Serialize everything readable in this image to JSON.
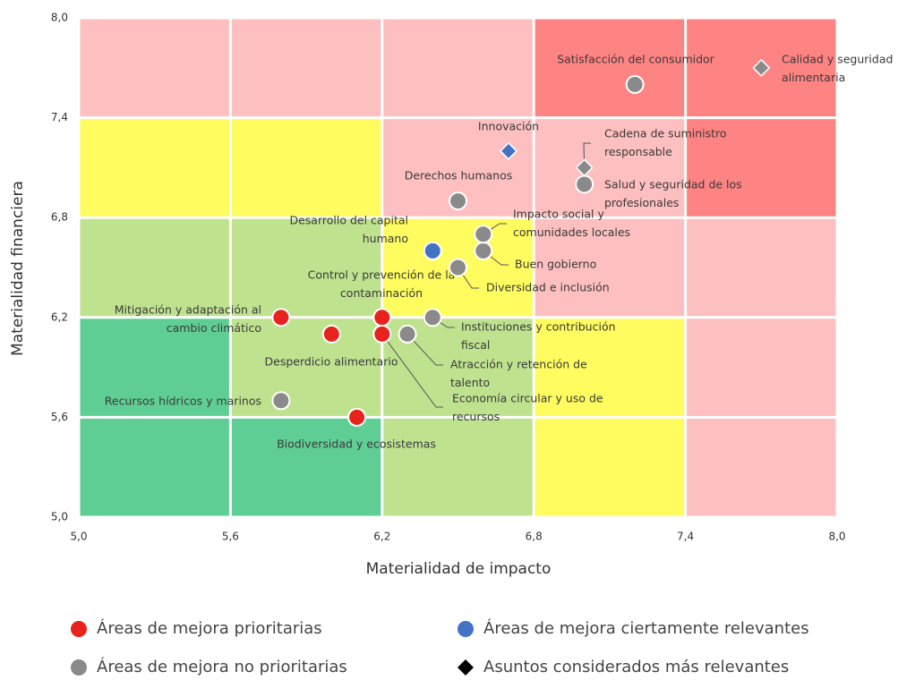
{
  "chart_data": {
    "type": "scatter",
    "x_label": "Materialidad de impacto",
    "y_label": "Materialidad  financiera",
    "xlim": [
      5,
      8
    ],
    "ylim": [
      5,
      8
    ],
    "xticks": [
      {
        "value": 5,
        "label": "5,0"
      },
      {
        "value": 5.6,
        "label": "5,6"
      },
      {
        "value": 6.2,
        "label": "6,2"
      },
      {
        "value": 6.8,
        "label": "6,8"
      },
      {
        "value": 7.4,
        "label": "7,4"
      },
      {
        "value": 8,
        "label": "8,0"
      }
    ],
    "yticks": [
      {
        "value": 5,
        "label": "5,0"
      },
      {
        "value": 5.6,
        "label": "5,6"
      },
      {
        "value": 6.2,
        "label": "6,2"
      },
      {
        "value": 6.8,
        "label": "6,8"
      },
      {
        "value": 7.4,
        "label": "7,4"
      },
      {
        "value": 8,
        "label": "8,0"
      }
    ],
    "zone_colors": [
      [
        "#fdbfbf",
        "#fdbfbf",
        "#fdbfbf",
        "#fe8383",
        "#fe8383"
      ],
      [
        "#fefc5e",
        "#fefc5e",
        "#fdbfbf",
        "#fdbfbf",
        "#fe8383"
      ],
      [
        "#bfe28f",
        "#bfe28f",
        "#fefc5e",
        "#fdbfbf",
        "#fdbfbf"
      ],
      [
        "#5fce94",
        "#bfe28f",
        "#bfe28f",
        "#fefc5e",
        "#fdbfbf"
      ],
      [
        "#5fce94",
        "#5fce94",
        "#bfe28f",
        "#fefc5e",
        "#fdbfbf"
      ]
    ],
    "legend": [
      {
        "name": "Áreas de mejora prioritarias",
        "color": "#e8221c",
        "marker": "circle"
      },
      {
        "name": "Áreas de mejora ciertamente relevantes",
        "color": "#4472c4",
        "marker": "circle"
      },
      {
        "name": "Áreas de mejora no prioritarias",
        "color": "#8a8a8a",
        "marker": "circle"
      },
      {
        "name": "Asuntos considerados más relevantes",
        "color": "#000000",
        "marker": "diamond"
      }
    ],
    "points": [
      {
        "x": 5.8,
        "y": 6.2,
        "color": "#e8221c",
        "marker": "circle",
        "label": [
          "Mitigación y adaptación al",
          "cambio climático"
        ]
      },
      {
        "x": 6.0,
        "y": 6.1,
        "color": "#e8221c",
        "marker": "circle",
        "label": [
          "Desperdicio alimentario"
        ]
      },
      {
        "x": 6.2,
        "y": 6.2,
        "color": "#e8221c",
        "marker": "circle",
        "label": [
          "Control y prevención de la",
          "contaminación"
        ]
      },
      {
        "x": 6.2,
        "y": 6.1,
        "color": "#e8221c",
        "marker": "circle",
        "label": [
          "Economía circular y uso de",
          "recursos"
        ]
      },
      {
        "x": 6.1,
        "y": 5.6,
        "color": "#e8221c",
        "marker": "circle",
        "label": [
          "Biodiversidad y ecosistemas"
        ]
      },
      {
        "x": 5.8,
        "y": 5.7,
        "color": "#8a8a8a",
        "marker": "circle",
        "label": [
          "Recursos hídricos y marinos"
        ]
      },
      {
        "x": 6.4,
        "y": 6.2,
        "color": "#8a8a8a",
        "marker": "circle",
        "label": [
          "Instituciones y contribución",
          "fiscal"
        ]
      },
      {
        "x": 6.3,
        "y": 6.1,
        "color": "#8a8a8a",
        "marker": "circle",
        "label": [
          "Atracción y retención de",
          "talento"
        ]
      },
      {
        "x": 6.5,
        "y": 6.5,
        "color": "#8a8a8a",
        "marker": "circle",
        "label": [
          "Diversidad e inclusión"
        ]
      },
      {
        "x": 6.6,
        "y": 6.6,
        "color": "#8a8a8a",
        "marker": "circle",
        "label": [
          "Buen gobierno"
        ]
      },
      {
        "x": 6.6,
        "y": 6.7,
        "color": "#8a8a8a",
        "marker": "circle",
        "label": [
          "Impacto social y",
          "comunidades locales"
        ]
      },
      {
        "x": 6.5,
        "y": 6.9,
        "color": "#8a8a8a",
        "marker": "circle",
        "label": [
          "Derechos humanos"
        ]
      },
      {
        "x": 7.0,
        "y": 7.0,
        "color": "#8a8a8a",
        "marker": "circle",
        "label": [
          "Salud y seguridad de los",
          "profesionales"
        ]
      },
      {
        "x": 7.2,
        "y": 7.6,
        "color": "#8a8a8a",
        "marker": "circle",
        "label": [
          "Satisfacción del consumidor"
        ]
      },
      {
        "x": 6.4,
        "y": 6.6,
        "color": "#4472c4",
        "marker": "circle",
        "label": [
          "Desarrollo del capital",
          "humano"
        ]
      },
      {
        "x": 6.7,
        "y": 7.2,
        "color": "#4472c4",
        "marker": "diamond",
        "label": [
          "Innovación"
        ]
      },
      {
        "x": 7.0,
        "y": 7.1,
        "color": "#8a8a8a",
        "marker": "diamond",
        "label": [
          "Cadena de suministro",
          "responsable"
        ]
      },
      {
        "x": 7.7,
        "y": 7.7,
        "color": "#8a8a8a",
        "marker": "diamond",
        "label": [
          "Calidad y seguridad",
          "alimentaria"
        ]
      }
    ]
  }
}
